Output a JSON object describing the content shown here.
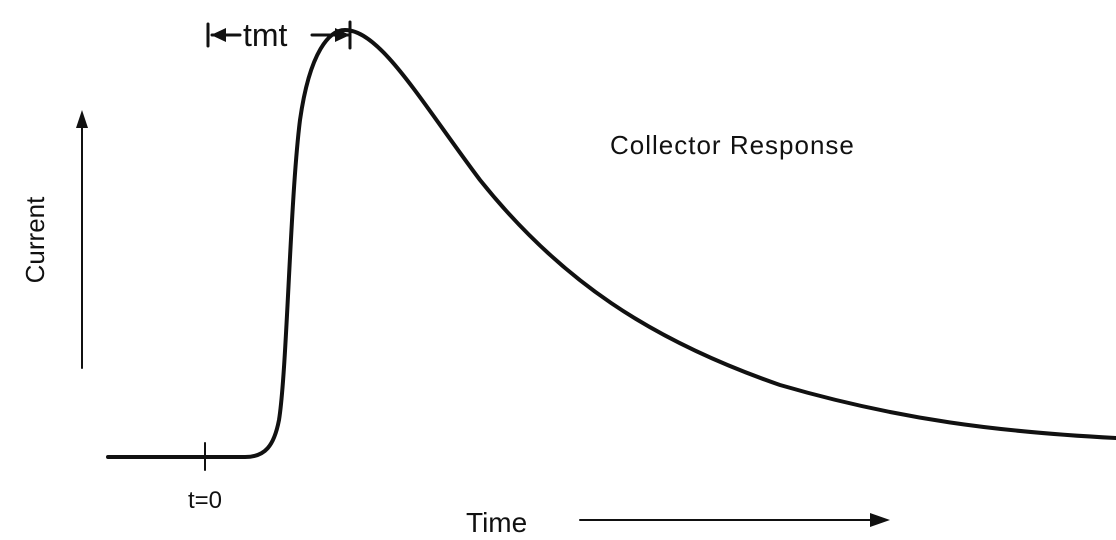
{
  "labels": {
    "tmt": "tmt",
    "title": "Collector Response",
    "y_axis": "Current",
    "x_axis": "Time",
    "origin": "t=0"
  }
}
